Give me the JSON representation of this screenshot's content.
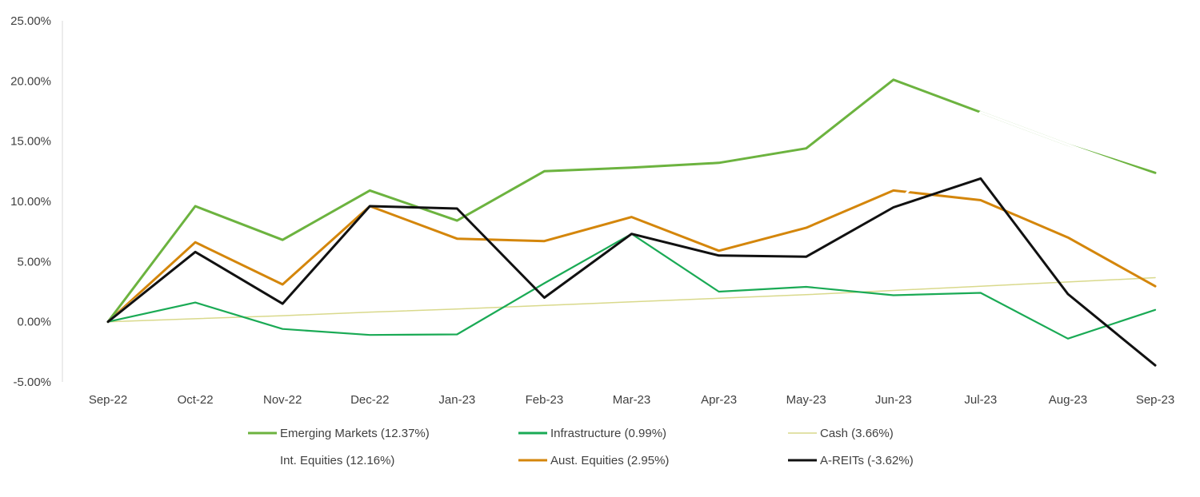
{
  "chart_data": {
    "type": "line",
    "title": "",
    "xlabel": "",
    "ylabel": "",
    "categories": [
      "Sep-22",
      "Oct-22",
      "Nov-22",
      "Dec-22",
      "Jan-23",
      "Feb-23",
      "Mar-23",
      "Apr-23",
      "May-23",
      "Jun-23",
      "Jul-23",
      "Aug-23",
      "Sep-23"
    ],
    "ylim": [
      -5,
      25
    ],
    "yticks": [
      {
        "value": 25,
        "label": "25.00%"
      },
      {
        "value": 20,
        "label": "20.00%"
      },
      {
        "value": 15,
        "label": "15.00%"
      },
      {
        "value": 10,
        "label": "10.00%"
      },
      {
        "value": 5,
        "label": "5.00%"
      },
      {
        "value": 0,
        "label": "0.00%"
      },
      {
        "value": -5,
        "label": "-5.00%"
      }
    ],
    "grid": false,
    "legend_position": "bottom",
    "series": [
      {
        "key": "emerging",
        "name": "Emerging Markets (12.37%)",
        "color": "#6cb33f",
        "values": [
          0,
          9.6,
          6.8,
          10.9,
          8.4,
          12.5,
          12.8,
          13.2,
          14.4,
          20.1,
          17.4,
          14.7,
          12.37
        ]
      },
      {
        "key": "infrastructure",
        "name": "Infrastructure (0.99%)",
        "color": "#1aaa55",
        "values": [
          0,
          1.6,
          -0.6,
          -1.1,
          -1.05,
          3.2,
          7.3,
          2.5,
          2.9,
          2.2,
          2.4,
          -1.4,
          0.99
        ]
      },
      {
        "key": "cash",
        "name": "Cash (3.66%)",
        "color": "#d9d98c",
        "values": [
          0,
          0.25,
          0.5,
          0.8,
          1.05,
          1.35,
          1.65,
          1.95,
          2.25,
          2.6,
          2.95,
          3.3,
          3.66
        ]
      },
      {
        "key": "intl",
        "name": "Int. Equities (12.16%)",
        "color": "#ffffff",
        "values": [
          0,
          5.9,
          1.5,
          9.6,
          9.4,
          2.0,
          7.3,
          5.5,
          5.4,
          9.5,
          17.4,
          14.7,
          12.16
        ]
      },
      {
        "key": "aust",
        "name": "Aust. Equities (2.95%)",
        "color": "#d4860b",
        "values": [
          0,
          6.6,
          3.1,
          9.6,
          6.9,
          6.7,
          8.7,
          5.9,
          7.8,
          10.9,
          10.1,
          7.0,
          2.95
        ]
      },
      {
        "key": "areits",
        "name": "A-REITs (-3.62%)",
        "color": "#111111",
        "values": [
          0,
          5.8,
          1.5,
          9.6,
          9.4,
          2.0,
          7.3,
          5.5,
          5.4,
          9.5,
          11.9,
          2.3,
          -3.62
        ]
      }
    ]
  }
}
